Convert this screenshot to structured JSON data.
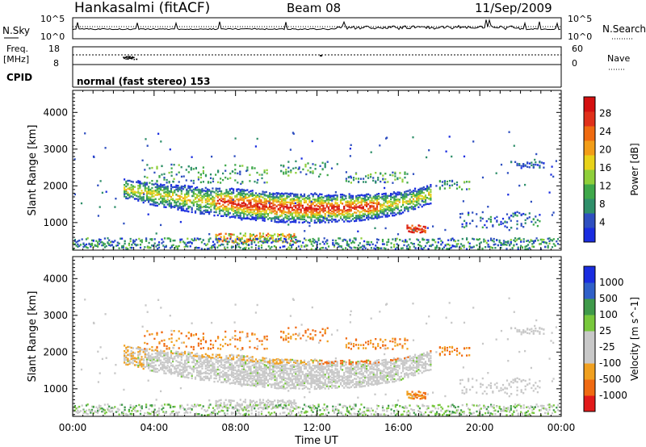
{
  "header": {
    "station": "Hankasalmi (fitACF)",
    "beam": "Beam 08",
    "date": "11/Sep/2009"
  },
  "panels": {
    "nsky": {
      "left_label": "N.Sky",
      "left_top": "10^5",
      "left_bottom": "10^0",
      "right_top": "10^5",
      "right_bottom": "10^0",
      "right_label": "N.Search"
    },
    "freq": {
      "label_line1": "Freq.",
      "label_line2": "[MHz]",
      "left_top": "18",
      "left_bottom": "8",
      "right_top": "60",
      "right_bottom": "0",
      "right_label": "Nave"
    },
    "cpid": {
      "label": "CPID",
      "mode_text": "normal (fast stereo) 153"
    }
  },
  "colors": {
    "power_scale": [
      "#1a2de0",
      "#2f4fc0",
      "#2f8f6a",
      "#3fa84a",
      "#8fcf3a",
      "#e8d21a",
      "#f29d18",
      "#ef6a10",
      "#e0301a",
      "#d41010"
    ],
    "velocity_scale": [
      "#e21a1a",
      "#f06a12",
      "#f0a020",
      "#c8c8c8",
      "#c8c8c8",
      "#78c83c",
      "#3f9a4a",
      "#3060c8",
      "#1a2de0"
    ]
  },
  "chart_data": [
    {
      "type": "heatmap",
      "name": "power",
      "x_ticks": [
        "00:00",
        "04:00",
        "08:00",
        "12:00",
        "16:00",
        "20:00",
        "00:00"
      ],
      "ylabel": "Slant Range [km]",
      "y_ticks": [
        1000,
        2000,
        3000,
        4000
      ],
      "ylim": [
        250,
        4600
      ],
      "colorbar_label": "Power [dB]",
      "colorbar_ticks": [
        4,
        8,
        12,
        16,
        20,
        24,
        28
      ],
      "features": [
        {
          "x": [
            2.5,
            4.0,
            6.0,
            8.0,
            10.0,
            12.0,
            14.0,
            16.0,
            17.5
          ],
          "y": [
            1950,
            1800,
            1650,
            1550,
            1450,
            1420,
            1430,
            1550,
            1800
          ]
        }
      ]
    },
    {
      "type": "heatmap",
      "name": "velocity",
      "x_ticks": [
        "00:00",
        "04:00",
        "08:00",
        "12:00",
        "16:00",
        "20:00",
        "00:00"
      ],
      "xlabel": "Time UT",
      "ylabel": "Slant Range [km]",
      "y_ticks": [
        1000,
        2000,
        3000,
        4000
      ],
      "ylim": [
        250,
        4600
      ],
      "colorbar_label": "Velocity [m s^-1]",
      "colorbar_ticks": [
        1000,
        500,
        100,
        25,
        -25,
        -100,
        -500,
        -1000
      ]
    }
  ]
}
